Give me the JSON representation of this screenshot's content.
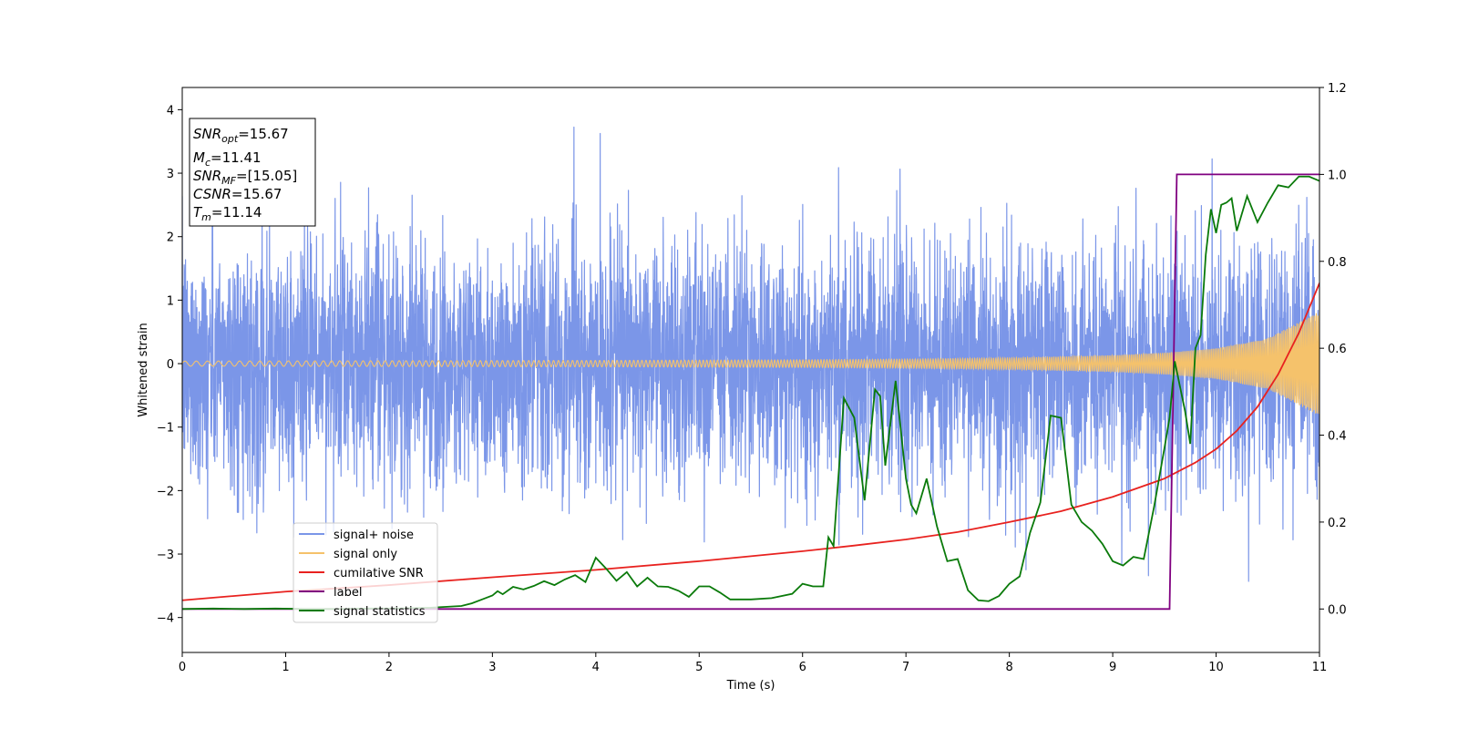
{
  "chart_data": {
    "type": "line",
    "title": "",
    "xlabel": "Time (s)",
    "ylabel": "Whitened strain",
    "xlim": [
      0,
      11
    ],
    "ylim": [
      -4.55,
      4.35
    ],
    "y2lim": [
      -0.1,
      1.2
    ],
    "x_ticks": [
      "0",
      "1",
      "2",
      "3",
      "4",
      "5",
      "6",
      "7",
      "8",
      "9",
      "10",
      "11"
    ],
    "y_ticks": [
      "4",
      "3",
      "2",
      "1",
      "0",
      "−1",
      "−2",
      "−3",
      "−4"
    ],
    "y2_ticks": [
      "1.2",
      "1.0",
      "0.8",
      "0.6",
      "0.4",
      "0.2",
      "0.0"
    ],
    "grid": false,
    "legend_position": "lower-left",
    "stats_box": {
      "snr_opt": {
        "symbol": "SNR",
        "sub": "opt",
        "value": "=15.67"
      },
      "mc": {
        "symbol": "M",
        "sub": "c",
        "value": "=11.41"
      },
      "snr_mf": {
        "symbol": "SNR",
        "sub": "MF",
        "value": "=[15.05]"
      },
      "csnr": {
        "symbol": "CSNR",
        "value": "=15.67"
      },
      "tm": {
        "symbol": "T",
        "sub": "m",
        "value": "=11.14"
      }
    },
    "series": [
      {
        "name": "signal+ noise",
        "color": "#7b96e8",
        "axis": "left",
        "description_points": "noise band, approx std 1.0, peaks near ±3 to ±4"
      },
      {
        "name": "signal only",
        "color": "#f5c26b",
        "axis": "left",
        "envelope_x": [
          0,
          2,
          4,
          6,
          7,
          8,
          9,
          9.5,
          10,
          10.5,
          11
        ],
        "envelope_y": [
          0.04,
          0.045,
          0.05,
          0.06,
          0.07,
          0.09,
          0.13,
          0.17,
          0.24,
          0.4,
          0.82
        ]
      },
      {
        "name": "cumilative SNR",
        "color": "#e8221f",
        "axis": "right",
        "x": [
          0,
          1,
          2,
          3,
          4,
          5,
          6,
          6.5,
          7,
          7.5,
          8,
          8.5,
          9,
          9.5,
          9.8,
          10,
          10.2,
          10.4,
          10.6,
          10.8,
          11
        ],
        "y": [
          0.02,
          0.04,
          0.055,
          0.073,
          0.09,
          0.11,
          0.133,
          0.146,
          0.16,
          0.177,
          0.2,
          0.225,
          0.258,
          0.3,
          0.337,
          0.368,
          0.41,
          0.465,
          0.54,
          0.635,
          0.75
        ]
      },
      {
        "name": "label",
        "color": "#800080",
        "axis": "right",
        "x": [
          0,
          9.55,
          9.62,
          11
        ],
        "y": [
          0,
          0,
          1,
          1
        ]
      },
      {
        "name": "signal statistics",
        "color": "#0a7a0a",
        "axis": "right",
        "x": [
          0,
          0.3,
          0.6,
          0.9,
          1.2,
          1.5,
          1.8,
          2.1,
          2.4,
          2.7,
          2.8,
          2.9,
          3.0,
          3.05,
          3.1,
          3.2,
          3.3,
          3.4,
          3.5,
          3.6,
          3.7,
          3.8,
          3.9,
          4.0,
          4.1,
          4.2,
          4.3,
          4.4,
          4.5,
          4.6,
          4.7,
          4.8,
          4.9,
          5.0,
          5.1,
          5.2,
          5.3,
          5.5,
          5.7,
          5.9,
          6.0,
          6.1,
          6.2,
          6.25,
          6.3,
          6.4,
          6.5,
          6.6,
          6.7,
          6.75,
          6.8,
          6.9,
          7.0,
          7.05,
          7.1,
          7.2,
          7.3,
          7.4,
          7.5,
          7.6,
          7.7,
          7.8,
          7.9,
          8.0,
          8.1,
          8.2,
          8.3,
          8.4,
          8.5,
          8.6,
          8.7,
          8.8,
          8.9,
          9.0,
          9.1,
          9.2,
          9.3,
          9.4,
          9.5,
          9.55,
          9.6,
          9.7,
          9.75,
          9.8,
          9.85,
          9.9,
          9.95,
          10.0,
          10.05,
          10.1,
          10.15,
          10.2,
          10.3,
          10.4,
          10.5,
          10.6,
          10.7,
          10.8,
          10.9,
          11.0
        ],
        "y": [
          0.0,
          0.001,
          0.0,
          0.001,
          0.0,
          0.0,
          0.001,
          0.001,
          0.003,
          0.007,
          0.013,
          0.022,
          0.031,
          0.041,
          0.034,
          0.051,
          0.045,
          0.053,
          0.064,
          0.055,
          0.068,
          0.078,
          0.062,
          0.118,
          0.093,
          0.065,
          0.085,
          0.052,
          0.072,
          0.052,
          0.051,
          0.042,
          0.028,
          0.052,
          0.052,
          0.038,
          0.022,
          0.022,
          0.025,
          0.035,
          0.058,
          0.052,
          0.052,
          0.165,
          0.145,
          0.485,
          0.44,
          0.25,
          0.505,
          0.49,
          0.33,
          0.525,
          0.3,
          0.24,
          0.22,
          0.3,
          0.19,
          0.11,
          0.115,
          0.043,
          0.02,
          0.018,
          0.03,
          0.058,
          0.075,
          0.175,
          0.245,
          0.445,
          0.44,
          0.24,
          0.2,
          0.18,
          0.15,
          0.11,
          0.1,
          0.12,
          0.115,
          0.235,
          0.37,
          0.44,
          0.57,
          0.455,
          0.38,
          0.6,
          0.63,
          0.815,
          0.92,
          0.865,
          0.93,
          0.935,
          0.945,
          0.87,
          0.95,
          0.89,
          0.935,
          0.975,
          0.97,
          0.995,
          0.995,
          0.985
        ]
      }
    ]
  }
}
